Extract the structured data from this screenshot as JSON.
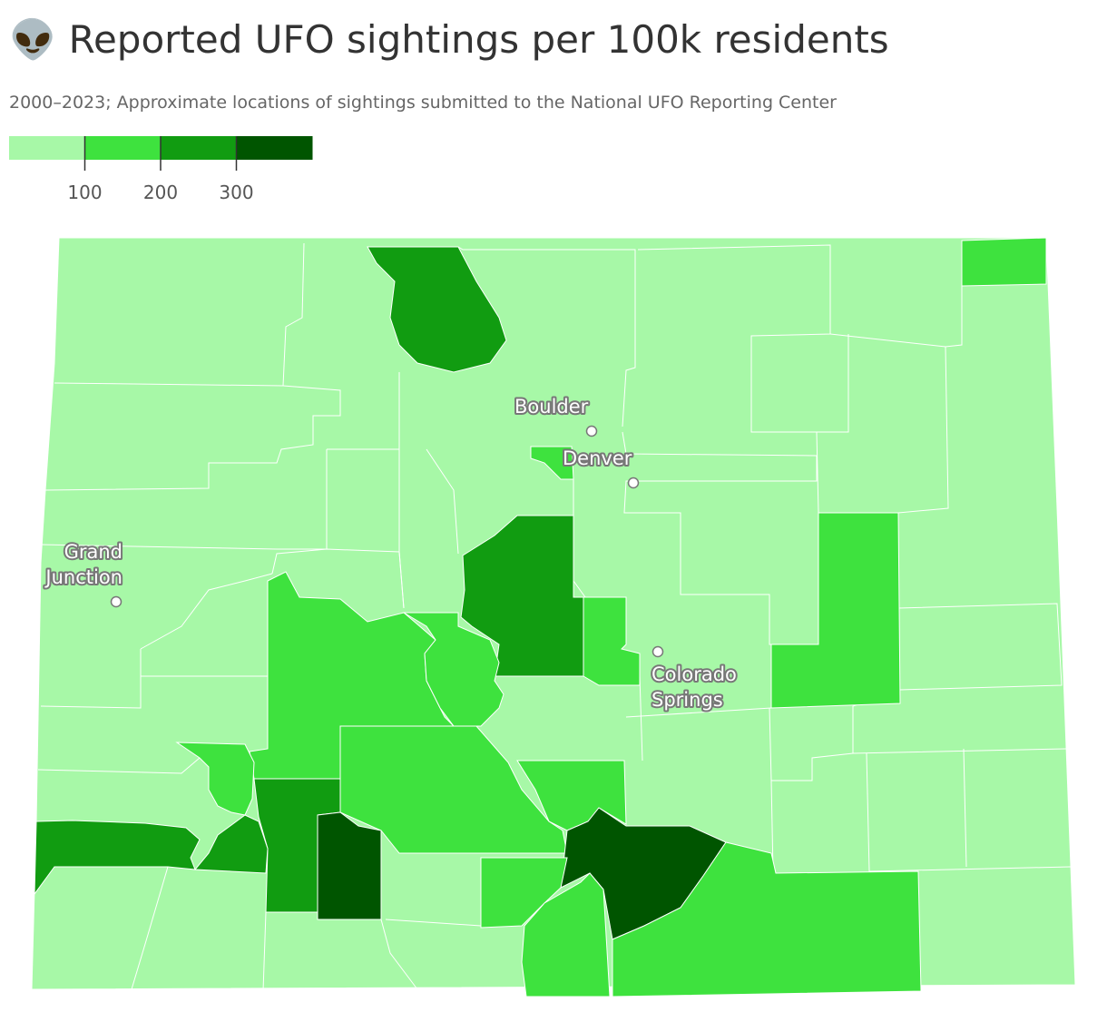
{
  "header": {
    "title": "👽 Reported UFO sightings per 100k residents",
    "subtitle": "2000–2023; Approximate locations of sightings submitted to the National UFO Reporting Center"
  },
  "legend": {
    "colors": [
      "#a7f8a7",
      "#3ee23e",
      "#119c11",
      "#005500"
    ],
    "range": [
      0,
      400
    ],
    "ticks": [
      100,
      200,
      300
    ]
  },
  "cities": [
    {
      "lines": [
        "Boulder"
      ]
    },
    {
      "lines": [
        "Denver"
      ]
    },
    {
      "lines": [
        "Grand",
        "Junction"
      ]
    },
    {
      "lines": [
        "Colorado",
        "Springs"
      ]
    }
  ]
}
